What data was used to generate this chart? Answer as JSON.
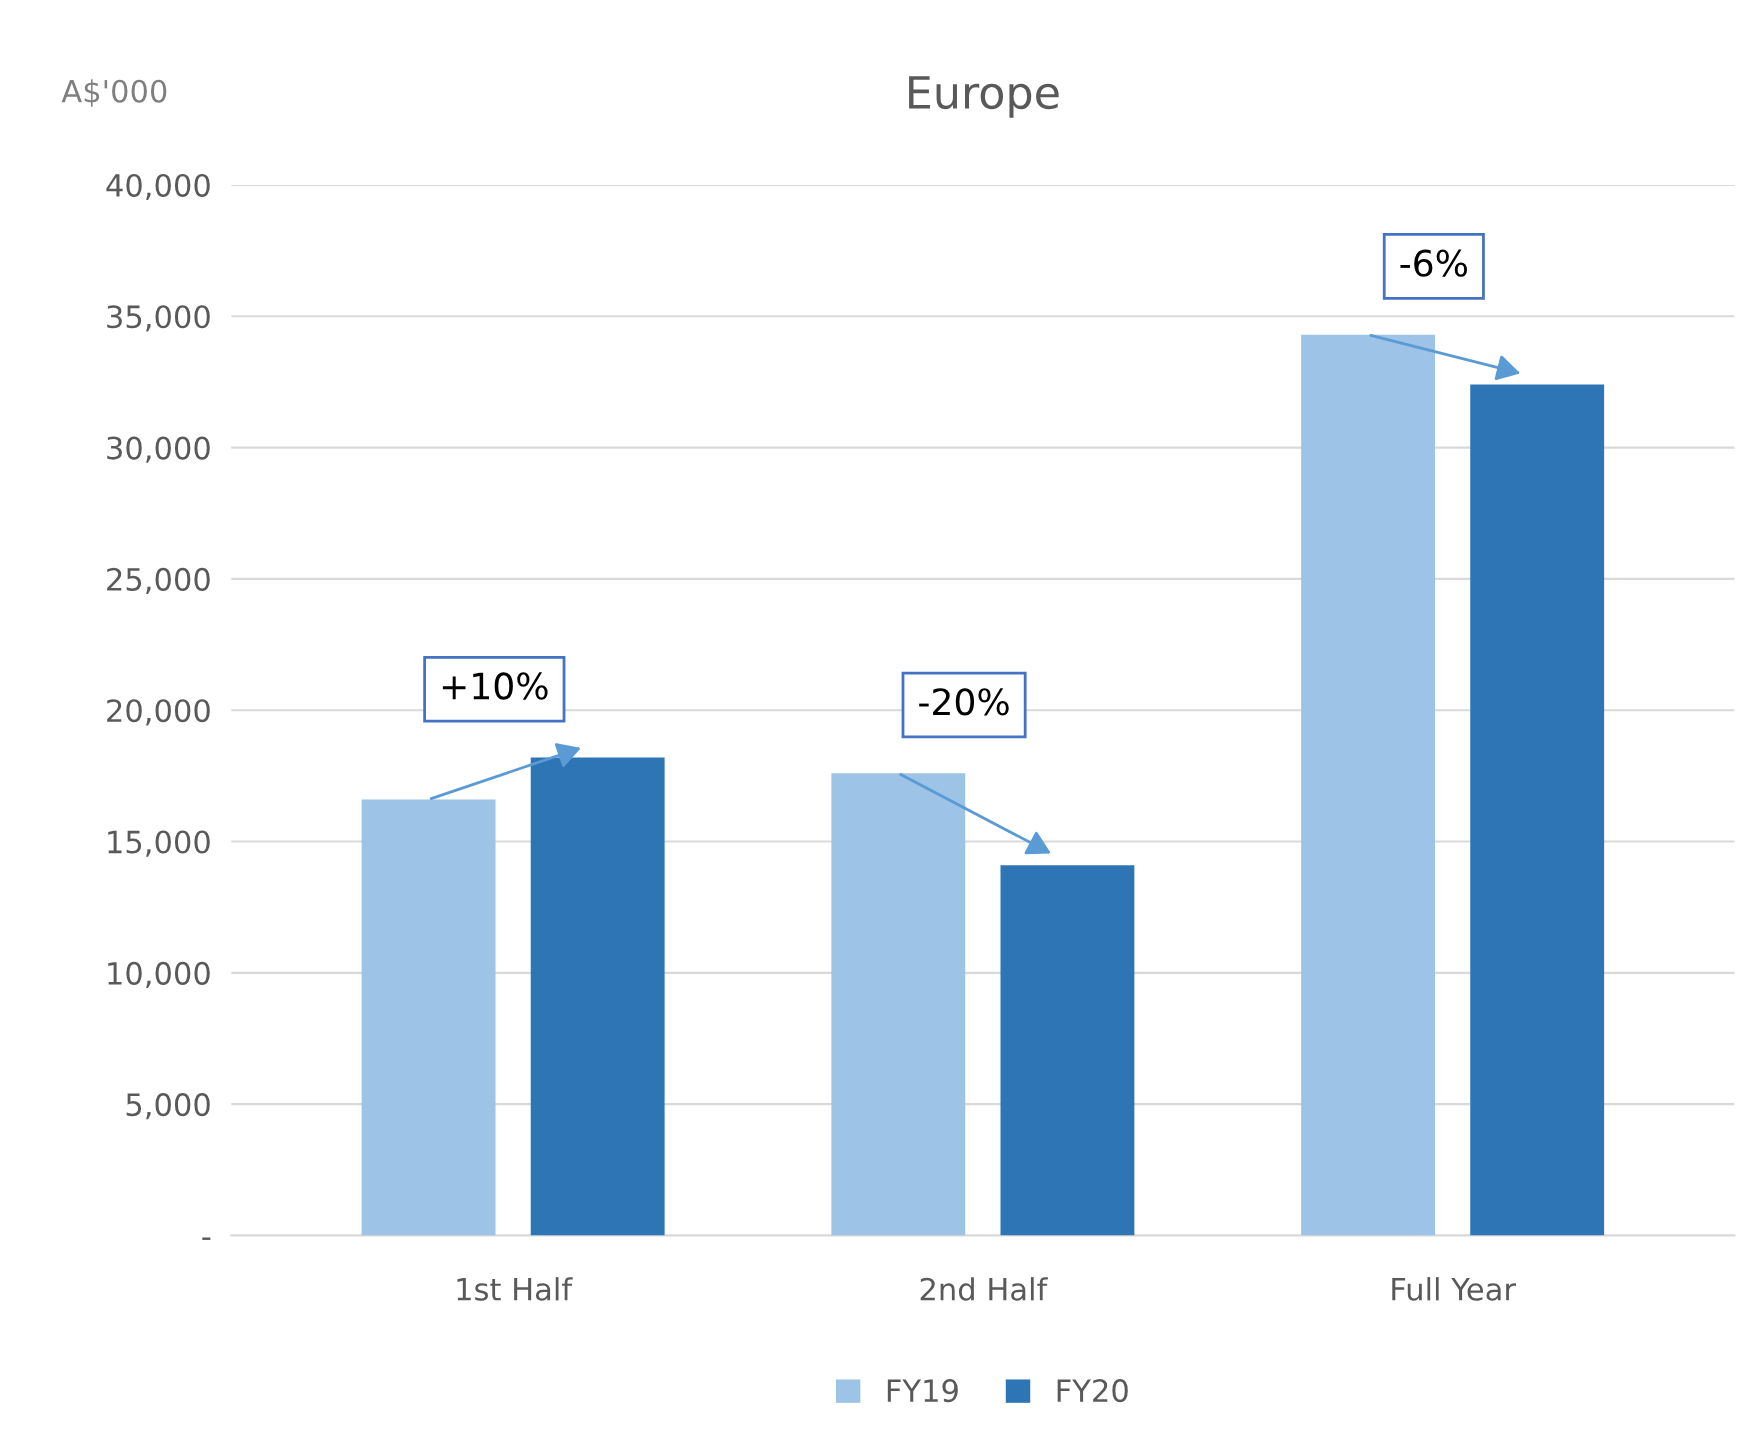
{
  "chart_data": {
    "type": "bar",
    "title": "Europe",
    "ylabel": "A$'000",
    "categories": [
      "1st Half",
      "2nd Half",
      "Full Year"
    ],
    "series": [
      {
        "name": "FY19",
        "color": "#9dc3e6",
        "values": [
          16600,
          17600,
          34300
        ]
      },
      {
        "name": "FY20",
        "color": "#2e75b6",
        "values": [
          18200,
          14100,
          32400
        ]
      }
    ],
    "ylim": [
      0,
      40000
    ],
    "yticks": [
      {
        "value": 0,
        "label": "-"
      },
      {
        "value": 5000,
        "label": "5,000"
      },
      {
        "value": 10000,
        "label": "10,000"
      },
      {
        "value": 15000,
        "label": "15,000"
      },
      {
        "value": 20000,
        "label": "20,000"
      },
      {
        "value": 25000,
        "label": "25,000"
      },
      {
        "value": 30000,
        "label": "30,000"
      },
      {
        "value": 35000,
        "label": "35,000"
      },
      {
        "value": 40000,
        "label": "40,000"
      }
    ],
    "grid": "y",
    "legend": "bottom",
    "annotations": [
      "+10%",
      "-20%",
      "-6%"
    ]
  }
}
